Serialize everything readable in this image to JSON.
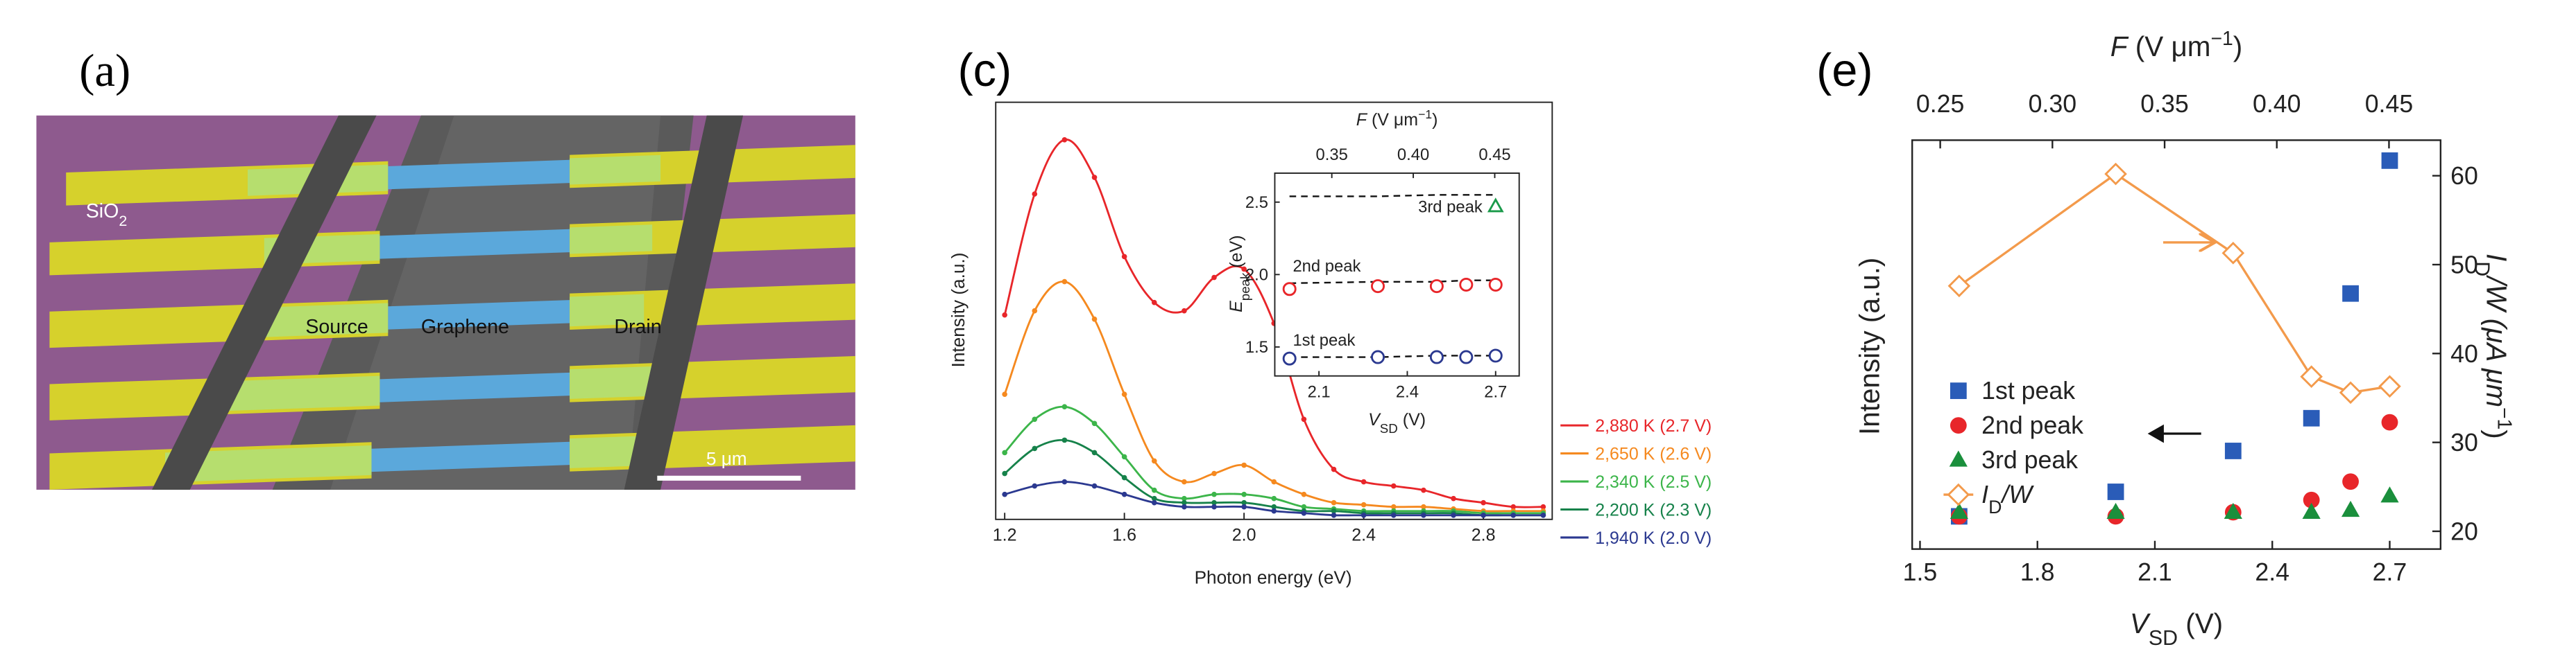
{
  "panel_a": {
    "label": "(a)",
    "sio2": [
      "SiO",
      "2"
    ],
    "source": "Source",
    "graphene": "Graphene",
    "drain": "Drain",
    "scale_bar": "5 μm"
  },
  "chart_data": [
    {
      "type": "line",
      "panel_label": "(c)",
      "x_label": "Photon energy (eV)",
      "y_label": "Intensity (a.u.)",
      "x": [
        1.2,
        1.3,
        1.4,
        1.5,
        1.6,
        1.7,
        1.8,
        1.9,
        2.0,
        2.1,
        2.2,
        2.3,
        2.4,
        2.5,
        2.6,
        2.7,
        2.8,
        2.9,
        3.0
      ],
      "xlim": [
        1.17,
        3.03
      ],
      "xticks": [
        1.2,
        1.6,
        {
          "value": 2,
          "label": "2.0"
        },
        2.4,
        2.8
      ],
      "ylim": [
        0,
        10
      ],
      "legend": "outside right",
      "series": [
        {
          "name": "2,880 K (2.7 V)",
          "color": "#e8262a",
          "values": [
            4.9,
            7.8,
            9.1,
            8.2,
            6.3,
            5.2,
            5.0,
            5.8,
            6.0,
            4.7,
            2.4,
            1.2,
            0.9,
            0.8,
            0.7,
            0.5,
            0.4,
            0.3,
            0.3
          ]
        },
        {
          "name": "2,650 K (2.6 V)",
          "color": "#f5891f",
          "values": [
            3.0,
            5.0,
            5.7,
            4.8,
            3.0,
            1.4,
            0.9,
            1.1,
            1.3,
            0.9,
            0.6,
            0.4,
            0.35,
            0.3,
            0.3,
            0.25,
            0.2,
            0.2,
            0.2
          ]
        },
        {
          "name": "2,340 K (2.5 V)",
          "color": "#3cb54a",
          "values": [
            1.6,
            2.4,
            2.7,
            2.3,
            1.5,
            0.7,
            0.5,
            0.6,
            0.6,
            0.5,
            0.3,
            0.25,
            0.2,
            0.2,
            0.2,
            0.2,
            0.15,
            0.15,
            0.15
          ]
        },
        {
          "name": "2,200 K (2.3 V)",
          "color": "#16824a",
          "values": [
            1.1,
            1.7,
            1.9,
            1.6,
            1.0,
            0.5,
            0.4,
            0.4,
            0.4,
            0.3,
            0.2,
            0.2,
            0.15,
            0.15,
            0.15,
            0.15,
            0.1,
            0.1,
            0.1
          ]
        },
        {
          "name": "1,940 K (2.0 V)",
          "color": "#2b3990",
          "values": [
            0.6,
            0.8,
            0.9,
            0.8,
            0.6,
            0.4,
            0.3,
            0.3,
            0.3,
            0.2,
            0.15,
            0.1,
            0.1,
            0.1,
            0.1,
            0.1,
            0.1,
            0.1,
            0.1
          ]
        }
      ]
    },
    {
      "type": "scatter",
      "x_label": [
        "V",
        "SD",
        " (V)"
      ],
      "x2_label": [
        "F",
        " (V μm",
        "−1",
        ")"
      ],
      "y_label": [
        "E",
        "peak",
        " (eV)"
      ],
      "x": [
        2.0,
        2.3,
        2.5,
        2.6,
        2.7
      ],
      "xlim": [
        1.95,
        2.78
      ],
      "xticks": [
        2.1,
        2.4,
        2.7
      ],
      "x2lim": [
        0.315,
        0.465
      ],
      "x2ticks": [
        0.35,
        {
          "value": 0.4,
          "label": "0.40"
        },
        0.45
      ],
      "ylim": [
        1.3,
        2.7
      ],
      "yticks": [
        1.5,
        {
          "value": 2,
          "label": "2.0"
        },
        2.5
      ],
      "legend": "inline",
      "series": [
        {
          "name": "1st peak",
          "color": "#2b3990",
          "marker": "circle-open",
          "values": [
            1.42,
            1.43,
            1.43,
            1.43,
            1.44
          ],
          "fit": [
            1.43,
            1.43,
            1.44,
            1.44,
            1.44
          ]
        },
        {
          "name": "2nd peak",
          "color": "#e8262a",
          "marker": "circle-open",
          "values": [
            1.9,
            1.92,
            1.92,
            1.93,
            1.93
          ],
          "fit": [
            1.94,
            1.95,
            1.95,
            1.96,
            1.96
          ]
        },
        {
          "name": "3rd peak",
          "color": "#1a9a4a",
          "marker": "triangle-open",
          "values": [
            null,
            null,
            null,
            null,
            2.47
          ],
          "fit": [
            2.54,
            2.54,
            2.55,
            2.55,
            2.55
          ]
        }
      ]
    },
    {
      "type": "scatter",
      "panel_label": "(e)",
      "x_label": [
        "V",
        "SD",
        " (V)"
      ],
      "x2_label": [
        "F",
        " (V μm",
        "−1",
        ")"
      ],
      "y_label": "Intensity (a.u.)",
      "y2_label": [
        "I",
        "D",
        "/W (μA μm",
        "−1",
        ")"
      ],
      "x": [
        1.6,
        2.0,
        2.3,
        2.5,
        2.6,
        2.7
      ],
      "xlim": [
        1.48,
        2.83
      ],
      "xticks": [
        1.5,
        1.8,
        2.1,
        2.4,
        2.7
      ],
      "x2lim": [
        0.2375,
        0.473
      ],
      "x2ticks": [
        0.25,
        {
          "value": 0.3,
          "label": "0.30"
        },
        0.35,
        {
          "value": 0.4,
          "label": "0.40"
        },
        0.45
      ],
      "ylim": [
        0,
        10
      ],
      "y2lim": [
        18,
        64
      ],
      "y2ticks": [
        20,
        30,
        40,
        50,
        60
      ],
      "legend": "left",
      "series": [
        {
          "name": "1st peak",
          "color": "#2a5cb8",
          "marker": "square",
          "values": [
            0.8,
            1.4,
            2.4,
            3.2,
            6.25,
            9.5
          ]
        },
        {
          "name": "2nd peak",
          "color": "#e8262a",
          "marker": "circle",
          "values": [
            0.8,
            0.8,
            0.9,
            1.2,
            1.65,
            3.1
          ]
        },
        {
          "name": "3rd peak",
          "color": "#1a8f3c",
          "marker": "triangle",
          "values": [
            0.9,
            0.9,
            0.9,
            0.9,
            0.95,
            1.3
          ]
        },
        {
          "name": [
            "I",
            "D",
            "/W"
          ],
          "color": "#f39a4b",
          "marker": "diamond-open",
          "axis": "y2",
          "connect": true,
          "values": [
            47.6,
            60.2,
            51.3,
            37.4,
            35.6,
            36.3
          ]
        }
      ]
    }
  ]
}
